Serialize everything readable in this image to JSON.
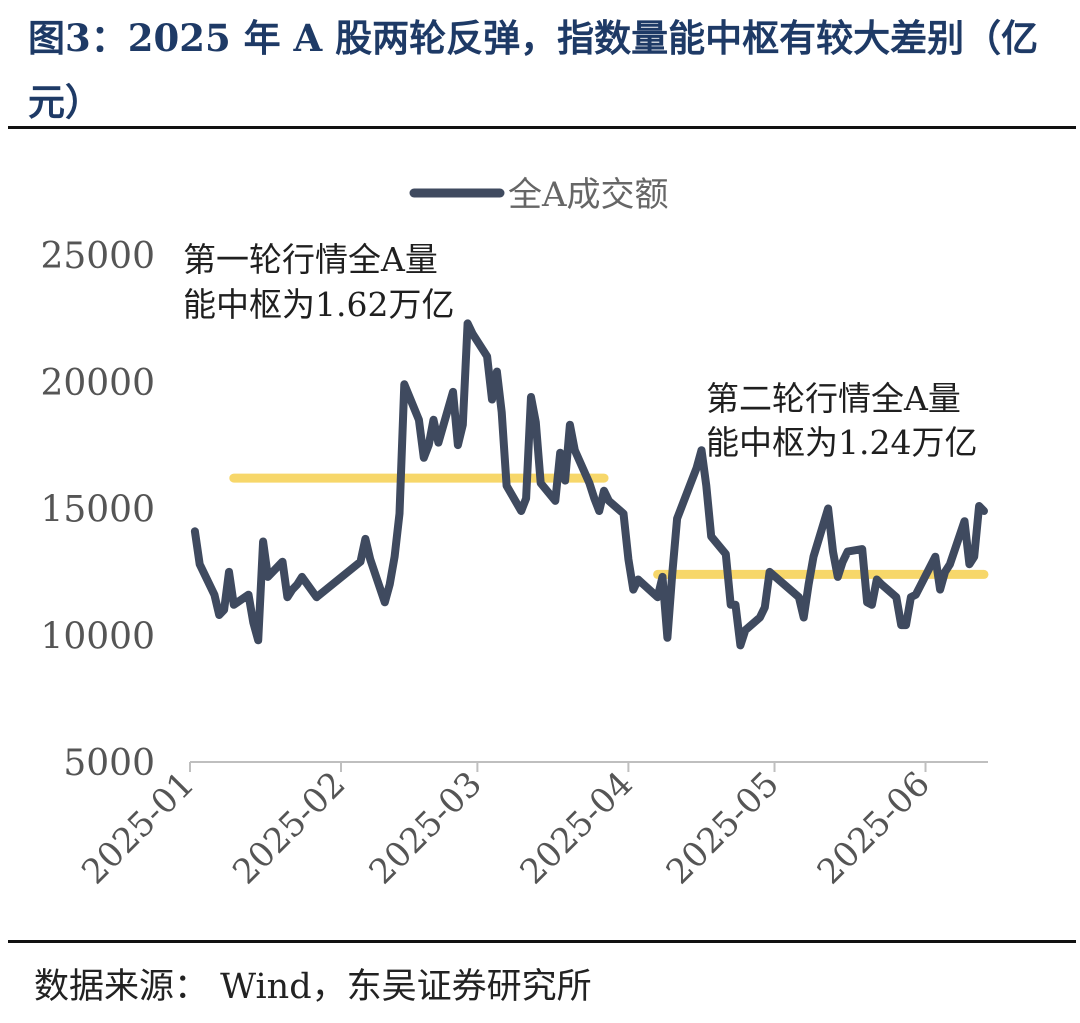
{
  "header": {
    "title": "图3：2025 年 A 股两轮反弹，指数量能中枢有较大差别（亿元）"
  },
  "footer": {
    "source": "数据来源： Wind，东吴证券研究所"
  },
  "colors": {
    "line": "#3f4a5f",
    "avg": "#f7d76a",
    "title": "#1e3a66"
  },
  "chart_data": {
    "type": "line",
    "title": "",
    "xlabel": "",
    "ylabel": "",
    "ylim": [
      5000,
      25000
    ],
    "yticks": [
      "25000",
      "20000",
      "15000",
      "10000",
      "5000"
    ],
    "xticks": [
      "2025-01",
      "2025-02",
      "2025-03",
      "2025-04",
      "2025-05",
      "2025-06"
    ],
    "legend": {
      "label": "全A成交额",
      "position": "top-center"
    },
    "series": [
      {
        "name": "全A成交额",
        "x": [
          "2025-01-02",
          "2025-01-03",
          "2025-01-06",
          "2025-01-07",
          "2025-01-08",
          "2025-01-09",
          "2025-01-10",
          "2025-01-13",
          "2025-01-14",
          "2025-01-15",
          "2025-01-16",
          "2025-01-17",
          "2025-01-20",
          "2025-01-21",
          "2025-01-22",
          "2025-01-23",
          "2025-01-24",
          "2025-01-27",
          "2025-02-05",
          "2025-02-06",
          "2025-02-07",
          "2025-02-10",
          "2025-02-11",
          "2025-02-12",
          "2025-02-13",
          "2025-02-14",
          "2025-02-17",
          "2025-02-18",
          "2025-02-19",
          "2025-02-20",
          "2025-02-21",
          "2025-02-24",
          "2025-02-25",
          "2025-02-26",
          "2025-02-27",
          "2025-02-28",
          "2025-03-03",
          "2025-03-04",
          "2025-03-05",
          "2025-03-06",
          "2025-03-07",
          "2025-03-10",
          "2025-03-11",
          "2025-03-12",
          "2025-03-13",
          "2025-03-14",
          "2025-03-17",
          "2025-03-18",
          "2025-03-19",
          "2025-03-20",
          "2025-03-21",
          "2025-03-24",
          "2025-03-25",
          "2025-03-26",
          "2025-03-27",
          "2025-03-28",
          "2025-03-31",
          "2025-04-01",
          "2025-04-02",
          "2025-04-03",
          "2025-04-07",
          "2025-04-08",
          "2025-04-09",
          "2025-04-10",
          "2025-04-11",
          "2025-04-14",
          "2025-04-15",
          "2025-04-16",
          "2025-04-17",
          "2025-04-18",
          "2025-04-21",
          "2025-04-22",
          "2025-04-23",
          "2025-04-24",
          "2025-04-25",
          "2025-04-28",
          "2025-04-29",
          "2025-04-30",
          "2025-05-06",
          "2025-05-07",
          "2025-05-08",
          "2025-05-09",
          "2025-05-12",
          "2025-05-13",
          "2025-05-14",
          "2025-05-15",
          "2025-05-16",
          "2025-05-19",
          "2025-05-20",
          "2025-05-21",
          "2025-05-22",
          "2025-05-23",
          "2025-05-26",
          "2025-05-27",
          "2025-05-28",
          "2025-05-29",
          "2025-05-30",
          "2025-06-03",
          "2025-06-04",
          "2025-06-05",
          "2025-06-06",
          "2025-06-09",
          "2025-06-10",
          "2025-06-11",
          "2025-06-12",
          "2025-06-13"
        ],
        "values": [
          14100,
          12800,
          11600,
          10800,
          11000,
          12500,
          11200,
          11600,
          10500,
          9800,
          13700,
          12300,
          12900,
          11500,
          11800,
          12000,
          12300,
          11500,
          12900,
          13800,
          13000,
          11300,
          12000,
          13100,
          14800,
          19900,
          18500,
          17000,
          17500,
          18500,
          17600,
          19600,
          17500,
          18300,
          22300,
          21900,
          21000,
          19300,
          20400,
          18800,
          15900,
          14900,
          15400,
          19400,
          18400,
          16000,
          15300,
          17200,
          16100,
          18300,
          17300,
          16000,
          15400,
          14900,
          15700,
          15300,
          14800,
          13000,
          11800,
          12200,
          11500,
          12300,
          9900,
          12400,
          14600,
          16100,
          16600,
          17300,
          15900,
          13900,
          13200,
          11200,
          11200,
          9600,
          10200,
          10700,
          11100,
          12500,
          11500,
          10700,
          12000,
          13100,
          15000,
          13300,
          12300,
          12900,
          13300,
          13400,
          11300,
          11200,
          12200,
          12000,
          11500,
          10400,
          10400,
          11500,
          11600,
          13100,
          11800,
          12500,
          12800,
          14500,
          12800,
          13100,
          15100,
          14900
        ]
      }
    ],
    "annotations": [
      {
        "line1": "第一轮行情全A量",
        "line2": "能中枢为1.62万亿",
        "value": 16200,
        "from": "2025-01-10",
        "to": "2025-03-27"
      },
      {
        "line1": "第二轮行情全A量",
        "line2": "能中枢为1.24万亿",
        "value": 12400,
        "from": "2025-04-07",
        "to": "2025-06-13"
      }
    ]
  }
}
